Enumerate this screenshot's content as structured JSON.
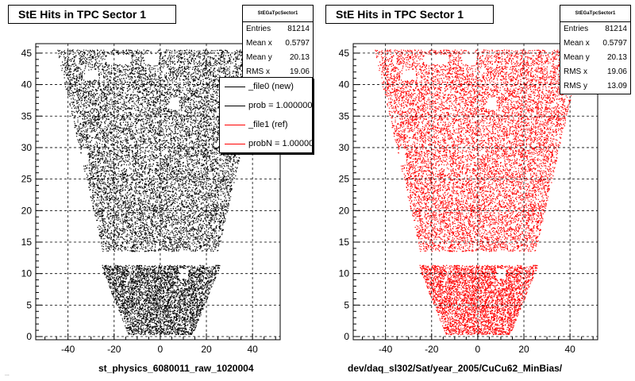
{
  "chart_data": [
    {
      "type": "scatter",
      "title": "StE Hits in TPC Sector 1",
      "xlabel": "st_physics_6080011_raw_1020004",
      "ylabel": "",
      "xlim": [
        -54,
        52
      ],
      "ylim": [
        -0.5,
        46.5
      ],
      "x_ticks": [
        "-40",
        "-20",
        "0",
        "20",
        "40"
      ],
      "y_ticks": [
        "0",
        "5",
        "10",
        "15",
        "20",
        "25",
        "30",
        "35",
        "40",
        "45"
      ],
      "grid": true,
      "marker_color": "#000000",
      "stats": {
        "title": "StEGaTpcSector1",
        "rows": [
          {
            "label": "Entries",
            "value": "81214"
          },
          {
            "label": "Mean x",
            "value": "0.5797"
          },
          {
            "label": "Mean y",
            "value": "20.13"
          },
          {
            "label": "RMS x",
            "value": "19.06"
          }
        ]
      },
      "legend": [
        {
          "text": "_file0 (new)",
          "color": "#000000"
        },
        {
          "text": "prob = 1.000000",
          "color": "#000000"
        },
        {
          "text": "_file1 (ref)",
          "color": "#ff0000"
        },
        {
          "text": "probN = 1.000000",
          "color": "#ff0000"
        }
      ]
    },
    {
      "type": "scatter",
      "title": "StE Hits in TPC Sector 1",
      "xlabel": "dev/daq_sl302/Sat/year_2005/CuCu62_MinBias/",
      "ylabel": "",
      "xlim": [
        -54,
        52
      ],
      "ylim": [
        -0.5,
        46.5
      ],
      "x_ticks": [
        "-40",
        "-20",
        "0",
        "20",
        "40"
      ],
      "y_ticks": [
        "0",
        "5",
        "10",
        "15",
        "20",
        "25",
        "30",
        "35",
        "40",
        "45"
      ],
      "grid": true,
      "marker_color": "#ff0000",
      "stats": {
        "title": "StEGaTpcSector1",
        "rows": [
          {
            "label": "Entries",
            "value": "81214"
          },
          {
            "label": "Mean x",
            "value": "0.5797"
          },
          {
            "label": "Mean y",
            "value": "20.13"
          },
          {
            "label": "RMS x",
            "value": "19.06"
          },
          {
            "label": "RMS y",
            "value": "13.09"
          }
        ]
      }
    }
  ],
  "footer": "..."
}
